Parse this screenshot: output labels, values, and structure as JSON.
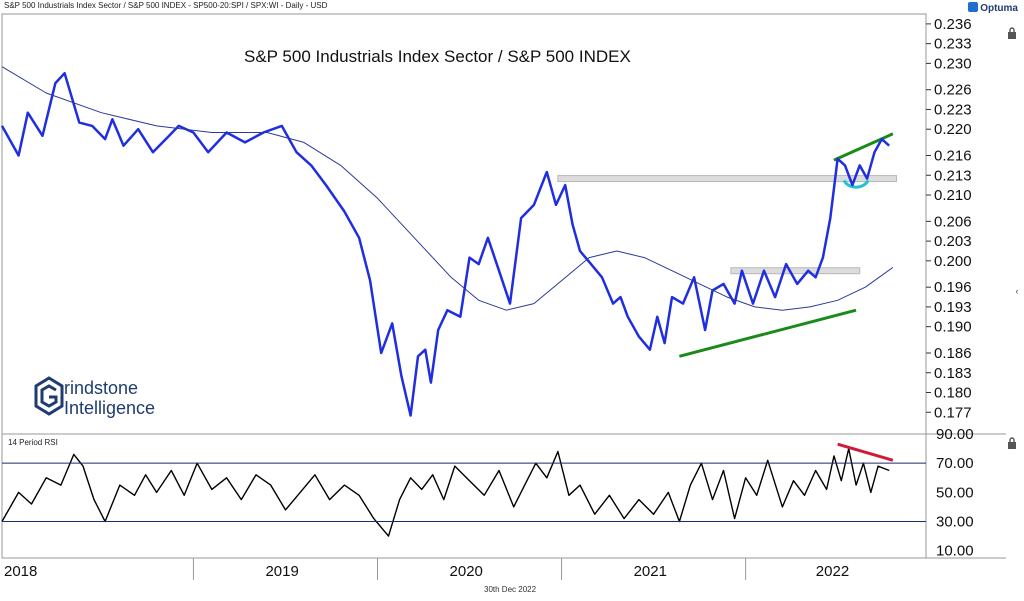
{
  "header": {
    "description": "S&P 500 Industrials Index Sector / S&P 500 INDEX - SP500-20:SPI / SPX:WI - Daily - USD",
    "brand": "Optuma"
  },
  "logo": {
    "line1": "rindstone",
    "line2": "Intelligence"
  },
  "footer": {
    "date": "30th Dec 2022"
  },
  "icons": {
    "lock": "lock-icon",
    "collapse": "chevron-left-icon",
    "brand": "optuma-logo-icon"
  },
  "colors": {
    "price": "#1f2ee0",
    "ma": "#2b3a9a",
    "support": "#1a8a1a",
    "resistance": "#b8b8b8",
    "retest": "#21c4d6",
    "rsi": "#000000",
    "rsi_divergence": "#d11a3a",
    "levels": "#1e2a6b"
  },
  "chart_data": [
    {
      "type": "line",
      "title": "S&P 500 Industrials Index Sector / S&P 500 INDEX",
      "ylim": [
        0.174,
        0.2375
      ],
      "x_ticks": [
        "2018",
        "2019",
        "2020",
        "2021",
        "2022"
      ],
      "y_ticks": [
        "0.236",
        "0.233",
        "0.230",
        "0.226",
        "0.223",
        "0.220",
        "0.216",
        "0.213",
        "0.210",
        "0.206",
        "0.203",
        "0.200",
        "0.196",
        "0.193",
        "0.190",
        "0.186",
        "0.183",
        "0.180",
        "0.177"
      ],
      "series": [
        {
          "role": "price",
          "x": [
            2017.96,
            2018.05,
            2018.1,
            2018.18,
            2018.25,
            2018.3,
            2018.38,
            2018.45,
            2018.52,
            2018.56,
            2018.62,
            2018.7,
            2018.78,
            2018.85,
            2018.92,
            2019.0,
            2019.08,
            2019.18,
            2019.28,
            2019.38,
            2019.48,
            2019.56,
            2019.64,
            2019.72,
            2019.82,
            2019.9,
            2019.96,
            2020.02,
            2020.08,
            2020.13,
            2020.18,
            2020.22,
            2020.26,
            2020.29,
            2020.33,
            2020.38,
            2020.45,
            2020.5,
            2020.55,
            2020.6,
            2020.66,
            2020.72,
            2020.78,
            2020.85,
            2020.92,
            2020.97,
            2021.02,
            2021.06,
            2021.1,
            2021.16,
            2021.22,
            2021.28,
            2021.32,
            2021.36,
            2021.42,
            2021.48,
            2021.52,
            2021.56,
            2021.6,
            2021.66,
            2021.72,
            2021.78,
            2021.82,
            2021.88,
            2021.94,
            2021.98,
            2022.04,
            2022.1,
            2022.16,
            2022.22,
            2022.28,
            2022.34,
            2022.38,
            2022.42,
            2022.46,
            2022.5,
            2022.54,
            2022.58,
            2022.62,
            2022.66,
            2022.7,
            2022.74,
            2022.78
          ],
          "values": [
            0.2205,
            0.216,
            0.2225,
            0.219,
            0.227,
            0.2285,
            0.221,
            0.2205,
            0.2185,
            0.2215,
            0.2175,
            0.22,
            0.2165,
            0.2185,
            0.2205,
            0.2195,
            0.2165,
            0.2195,
            0.218,
            0.2195,
            0.2205,
            0.2165,
            0.2145,
            0.2115,
            0.2075,
            0.2035,
            0.197,
            0.186,
            0.1905,
            0.1825,
            0.1765,
            0.1855,
            0.1865,
            0.1815,
            0.1895,
            0.1925,
            0.1915,
            0.2005,
            0.1995,
            0.2035,
            0.1985,
            0.1935,
            0.2065,
            0.2085,
            0.2135,
            0.2085,
            0.2115,
            0.2055,
            0.2015,
            0.1995,
            0.1975,
            0.1935,
            0.1945,
            0.1915,
            0.1885,
            0.1865,
            0.1915,
            0.1875,
            0.1945,
            0.1935,
            0.1975,
            0.1895,
            0.1955,
            0.1965,
            0.1935,
            0.1985,
            0.1935,
            0.1985,
            0.1945,
            0.1995,
            0.1965,
            0.1985,
            0.1975,
            0.2005,
            0.2065,
            0.2155,
            0.2145,
            0.2115,
            0.2145,
            0.2125,
            0.2165,
            0.2185,
            0.2175
          ]
        },
        {
          "role": "moving-average",
          "x": [
            2017.96,
            2018.2,
            2018.5,
            2018.8,
            2019.1,
            2019.4,
            2019.6,
            2019.8,
            2020.0,
            2020.2,
            2020.4,
            2020.55,
            2020.7,
            2020.85,
            2021.0,
            2021.15,
            2021.3,
            2021.45,
            2021.6,
            2021.75,
            2021.9,
            2022.05,
            2022.2,
            2022.35,
            2022.5,
            2022.65,
            2022.8
          ],
          "values": [
            0.2295,
            0.2255,
            0.2225,
            0.2205,
            0.2195,
            0.2195,
            0.218,
            0.2145,
            0.2095,
            0.2035,
            0.1975,
            0.194,
            0.1925,
            0.1935,
            0.197,
            0.2005,
            0.2015,
            0.2005,
            0.1985,
            0.1965,
            0.1945,
            0.193,
            0.1925,
            0.193,
            0.194,
            0.196,
            0.199
          ]
        }
      ],
      "annotations": [
        {
          "kind": "resistance-zone",
          "x": [
            2020.98,
            2022.82
          ],
          "y": 0.2125
        },
        {
          "kind": "resistance-zone",
          "x": [
            2021.92,
            2022.62
          ],
          "y": 0.1985
        },
        {
          "kind": "support-trendline",
          "x": [
            2021.64,
            2022.6
          ],
          "y": [
            0.1855,
            0.1925
          ]
        },
        {
          "kind": "support-trendline",
          "x": [
            2022.48,
            2022.8
          ],
          "y": [
            0.2153,
            0.2193
          ]
        },
        {
          "kind": "retest-arc",
          "x": 2022.6,
          "y": 0.211
        }
      ]
    },
    {
      "type": "line",
      "title": "14 Period RSI",
      "ylim": [
        5,
        90
      ],
      "y_ticks": [
        "90.00",
        "70.00",
        "50.00",
        "30.00",
        "10.00"
      ],
      "levels": [
        70,
        30
      ],
      "series": [
        {
          "role": "rsi",
          "x": [
            2017.96,
            2018.05,
            2018.12,
            2018.2,
            2018.28,
            2018.35,
            2018.4,
            2018.46,
            2018.52,
            2018.6,
            2018.68,
            2018.74,
            2018.8,
            2018.88,
            2018.95,
            2019.02,
            2019.1,
            2019.18,
            2019.26,
            2019.34,
            2019.42,
            2019.5,
            2019.58,
            2019.66,
            2019.74,
            2019.82,
            2019.9,
            2019.98,
            2020.06,
            2020.12,
            2020.18,
            2020.24,
            2020.3,
            2020.36,
            2020.42,
            2020.5,
            2020.58,
            2020.66,
            2020.74,
            2020.8,
            2020.86,
            2020.92,
            2020.98,
            2021.04,
            2021.1,
            2021.18,
            2021.26,
            2021.34,
            2021.42,
            2021.5,
            2021.58,
            2021.64,
            2021.7,
            2021.76,
            2021.82,
            2021.88,
            2021.94,
            2022.0,
            2022.06,
            2022.12,
            2022.2,
            2022.26,
            2022.32,
            2022.38,
            2022.44,
            2022.48,
            2022.52,
            2022.56,
            2022.6,
            2022.64,
            2022.68,
            2022.72,
            2022.78
          ],
          "values": [
            30,
            50,
            42,
            60,
            55,
            76,
            68,
            45,
            30,
            55,
            48,
            62,
            50,
            65,
            48,
            70,
            52,
            60,
            45,
            62,
            55,
            38,
            50,
            62,
            45,
            55,
            48,
            32,
            20,
            45,
            60,
            52,
            62,
            45,
            68,
            58,
            48,
            65,
            40,
            55,
            70,
            60,
            78,
            48,
            55,
            35,
            48,
            32,
            45,
            35,
            50,
            30,
            55,
            70,
            45,
            65,
            32,
            60,
            48,
            72,
            40,
            58,
            48,
            65,
            52,
            75,
            58,
            80,
            55,
            70,
            50,
            68,
            65
          ]
        }
      ],
      "annotations": [
        {
          "kind": "divergence-line",
          "x": [
            2022.5,
            2022.8
          ],
          "y": [
            83,
            72
          ]
        }
      ]
    }
  ]
}
